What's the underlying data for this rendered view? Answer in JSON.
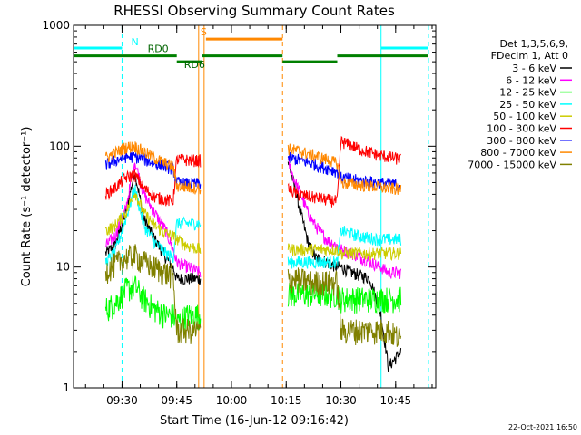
{
  "chart_data": {
    "type": "line",
    "title": "RHESSI Observing Summary Count Rates",
    "xlabel": "Start Time (16-Jun-12 09:16:42)",
    "ylabel": "Count Rate (s⁻¹ detector⁻¹)",
    "y_scale": "log",
    "xlim": [
      "09:16:42",
      "10:56:00"
    ],
    "ylim": [
      1,
      1000
    ],
    "x_ticks": [
      "09:30",
      "09:45",
      "10:00",
      "10:15",
      "10:30",
      "10:45"
    ],
    "y_ticks": [
      "1",
      "10",
      "100",
      "1000"
    ],
    "legend": {
      "position": "right",
      "header": [
        "Det 1,3,5,6,9,",
        "FDecim 1, Att 0"
      ]
    },
    "data_gaps": [
      {
        "start": "09:16:42",
        "end": "09:25:30"
      },
      {
        "start": "09:51:30",
        "end": "10:15:30"
      },
      {
        "start": "10:46:30",
        "end": "10:56:00"
      }
    ],
    "series": [
      {
        "name": "3 - 6 keV",
        "color": "#000000",
        "x": [
          "09:25:30",
          "09:28:00",
          "09:31:00",
          "09:33:30",
          "09:36:00",
          "09:39:00",
          "09:42:00",
          "09:44:00",
          "09:45:00",
          "09:48:00",
          "09:51:30",
          "10:15:30",
          "10:17:00",
          "10:19:00",
          "10:21:00",
          "10:23:00",
          "10:26:00",
          "10:29:00",
          "10:30:00",
          "10:33:00",
          "10:38:00",
          "10:41:00",
          "10:43:00",
          "10:46:30"
        ],
        "y": [
          13,
          15,
          28,
          62,
          25,
          17,
          12,
          10,
          8,
          8,
          8,
          75,
          50,
          28,
          16,
          12,
          11,
          10,
          10,
          9,
          8,
          4,
          1.5,
          2
        ]
      },
      {
        "name": "6 - 12 keV",
        "color": "#ff00ff",
        "x": [
          "09:25:30",
          "09:28:00",
          "09:31:00",
          "09:33:30",
          "09:36:00",
          "09:39:00",
          "09:42:00",
          "09:44:00",
          "09:45:00",
          "09:48:00",
          "09:51:30",
          "10:15:30",
          "10:17:00",
          "10:19:00",
          "10:21:00",
          "10:23:00",
          "10:26:00",
          "10:29:00",
          "10:30:00",
          "10:33:00",
          "10:38:00",
          "10:41:00",
          "10:43:00",
          "10:46:30"
        ],
        "y": [
          15,
          18,
          30,
          75,
          40,
          28,
          20,
          14,
          11,
          10,
          9,
          75,
          55,
          40,
          28,
          22,
          17,
          15,
          14,
          13,
          11,
          10,
          9,
          9
        ]
      },
      {
        "name": "12 - 25 keV",
        "color": "#00ff00",
        "x": [
          "09:25:30",
          "09:28:00",
          "09:31:00",
          "09:33:30",
          "09:36:00",
          "09:39:00",
          "09:42:00",
          "09:44:00",
          "09:45:00",
          "09:48:00",
          "09:51:30",
          "10:15:30",
          "10:18:00",
          "10:22:00",
          "10:26:00",
          "10:29:00",
          "10:30:00",
          "10:35:00",
          "10:40:00",
          "10:46:30"
        ],
        "y": [
          4.5,
          5,
          6.5,
          7,
          5.5,
          4.5,
          4,
          4,
          3.5,
          4,
          4,
          6,
          6,
          6,
          6,
          6,
          5.5,
          5.5,
          5.5,
          5.5
        ]
      },
      {
        "name": "25 - 50 keV",
        "color": "#00ffff",
        "x": [
          "09:25:30",
          "09:28:00",
          "09:31:00",
          "09:33:30",
          "09:36:00",
          "09:39:00",
          "09:42:00",
          "09:44:00",
          "09:45:00",
          "09:48:00",
          "09:51:30",
          "10:15:30",
          "10:18:00",
          "10:22:00",
          "10:26:00",
          "10:29:00",
          "10:30:00",
          "10:35:00",
          "10:40:00",
          "10:46:30"
        ],
        "y": [
          11,
          13,
          25,
          45,
          22,
          16,
          13,
          12,
          23,
          23,
          23,
          11,
          11,
          11,
          11,
          11,
          20,
          18,
          17,
          17
        ]
      },
      {
        "name": "50 - 100 keV",
        "color": "#cccc00",
        "x": [
          "09:25:30",
          "09:28:00",
          "09:31:00",
          "09:33:30",
          "09:36:00",
          "09:39:00",
          "09:42:00",
          "09:44:00",
          "09:45:00",
          "09:48:00",
          "09:51:30",
          "10:15:30",
          "10:18:00",
          "10:22:00",
          "10:26:00",
          "10:29:00",
          "10:30:00",
          "10:35:00",
          "10:40:00",
          "10:46:30"
        ],
        "y": [
          20,
          22,
          28,
          42,
          28,
          22,
          19,
          18,
          17,
          15,
          14,
          14,
          14,
          14,
          14,
          14,
          13,
          13,
          13,
          13
        ]
      },
      {
        "name": "100 - 300 keV",
        "color": "#ff0000",
        "x": [
          "09:25:30",
          "09:28:00",
          "09:31:00",
          "09:33:30",
          "09:36:00",
          "09:39:00",
          "09:42:00",
          "09:44:00",
          "09:45:00",
          "09:48:00",
          "09:51:30",
          "10:15:30",
          "10:18:00",
          "10:22:00",
          "10:26:00",
          "10:29:00",
          "10:30:00",
          "10:35:00",
          "10:40:00",
          "10:46:30"
        ],
        "y": [
          40,
          45,
          55,
          58,
          45,
          38,
          36,
          35,
          78,
          77,
          76,
          45,
          40,
          38,
          36,
          35,
          110,
          95,
          85,
          78
        ]
      },
      {
        "name": "300 - 800 keV",
        "color": "#0000ff",
        "x": [
          "09:25:30",
          "09:28:00",
          "09:31:00",
          "09:33:30",
          "09:36:00",
          "09:39:00",
          "09:42:00",
          "09:44:00",
          "09:45:00",
          "09:48:00",
          "09:51:30",
          "10:15:30",
          "10:18:00",
          "10:22:00",
          "10:26:00",
          "10:29:00",
          "10:30:00",
          "10:35:00",
          "10:40:00",
          "10:46:30"
        ],
        "y": [
          70,
          76,
          82,
          82,
          78,
          72,
          68,
          65,
          50,
          49,
          49,
          80,
          78,
          72,
          66,
          62,
          55,
          52,
          50,
          48
        ]
      },
      {
        "name": "800 - 7000 keV",
        "color": "#ff8800",
        "x": [
          "09:25:30",
          "09:28:00",
          "09:31:00",
          "09:33:30",
          "09:36:00",
          "09:39:00",
          "09:42:00",
          "09:44:00",
          "09:45:00",
          "09:48:00",
          "09:51:30",
          "10:15:30",
          "10:18:00",
          "10:22:00",
          "10:26:00",
          "10:29:00",
          "10:30:00",
          "10:35:00",
          "10:40:00",
          "10:46:30"
        ],
        "y": [
          80,
          88,
          98,
          100,
          90,
          80,
          72,
          68,
          47,
          46,
          45,
          95,
          92,
          85,
          78,
          72,
          50,
          48,
          46,
          44
        ]
      },
      {
        "name": "7000 - 15000 keV",
        "color": "#808000",
        "x": [
          "09:25:30",
          "09:28:00",
          "09:31:00",
          "09:33:30",
          "09:36:00",
          "09:39:00",
          "09:42:00",
          "09:44:00",
          "09:45:00",
          "09:48:00",
          "09:51:30",
          "10:15:30",
          "10:18:00",
          "10:22:00",
          "10:26:00",
          "10:29:00",
          "10:30:00",
          "10:35:00",
          "10:40:00",
          "10:43:00",
          "10:46:30"
        ],
        "y": [
          9.5,
          10.5,
          12,
          12.5,
          11,
          10,
          9,
          8.5,
          3,
          3,
          3,
          8,
          8,
          7.5,
          7.5,
          7.5,
          3,
          3,
          3,
          3,
          2.5
        ]
      }
    ],
    "flags": [
      {
        "label": "N",
        "color": "#00ffff",
        "segments": [
          [
            "09:16:42",
            "09:30:00"
          ],
          [
            "10:41:00",
            "10:54:00"
          ]
        ],
        "level": 650,
        "style": "solid"
      },
      {
        "label": "S",
        "color": "#ff8800",
        "segments": [
          [
            "09:53:00",
            "10:14:00"
          ]
        ],
        "level": 770,
        "style": "solid"
      },
      {
        "label": "RD0",
        "color": "#008000",
        "segments": [
          [
            "09:16:42",
            "09:45:00"
          ],
          [
            "09:52:00",
            "10:14:00"
          ],
          [
            "10:29:00",
            "10:54:00"
          ]
        ],
        "level": 560,
        "style": "solid"
      },
      {
        "label": "RD6",
        "color": "#008000",
        "segments": [
          [
            "09:45:00",
            "09:52:00"
          ],
          [
            "10:14:00",
            "10:29:00"
          ]
        ],
        "level": 500,
        "style": "solid"
      }
    ],
    "markers": [
      {
        "time": "09:30:00",
        "color": "#00ffff",
        "style": "dashed"
      },
      {
        "time": "09:51:00",
        "color": "#ff8800",
        "style": "solid"
      },
      {
        "time": "09:52:30",
        "color": "#ff8800",
        "style": "solid"
      },
      {
        "time": "10:14:00",
        "color": "#ff8800",
        "style": "dashed"
      },
      {
        "time": "10:41:00",
        "color": "#00ffff",
        "style": "solid"
      },
      {
        "time": "10:54:00",
        "color": "#00ffff",
        "style": "dashed"
      }
    ],
    "timestamp": "22-Oct-2021 16:50"
  }
}
